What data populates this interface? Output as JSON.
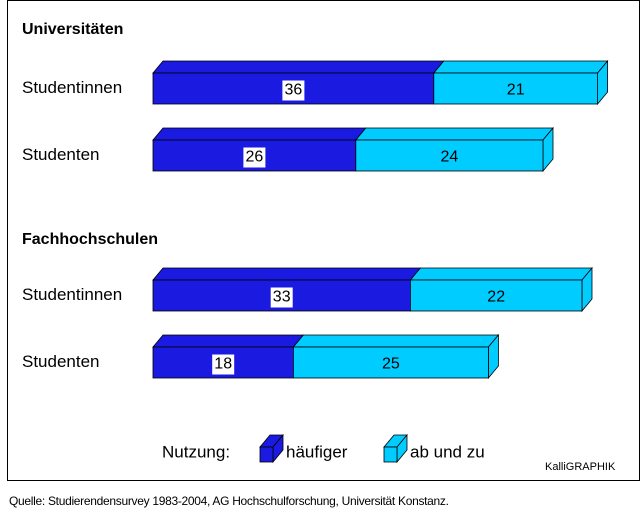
{
  "chart_data": {
    "type": "bar",
    "legend_title": "Nutzung:",
    "series": [
      {
        "name": "häufiger",
        "color": "#1a1ae0"
      },
      {
        "name": "ab und zu",
        "color": "#00ccff"
      }
    ],
    "groups": [
      {
        "title": "Universitäten",
        "categories": [
          "Studentinnen",
          "Studenten"
        ],
        "series": [
          {
            "values": [
              36,
              26
            ]
          },
          {
            "values": [
              21,
              24
            ]
          }
        ]
      },
      {
        "title": "Fachhochschulen",
        "categories": [
          "Studentinnen",
          "Studenten"
        ],
        "series": [
          {
            "values": [
              33,
              18
            ]
          },
          {
            "values": [
              22,
              25
            ]
          }
        ]
      }
    ],
    "credit": "KalliGRAPHIK",
    "source": "Quelle: Studierendensurvey 1983-2004, AG Hochschulforschung, Universität Konstanz."
  }
}
